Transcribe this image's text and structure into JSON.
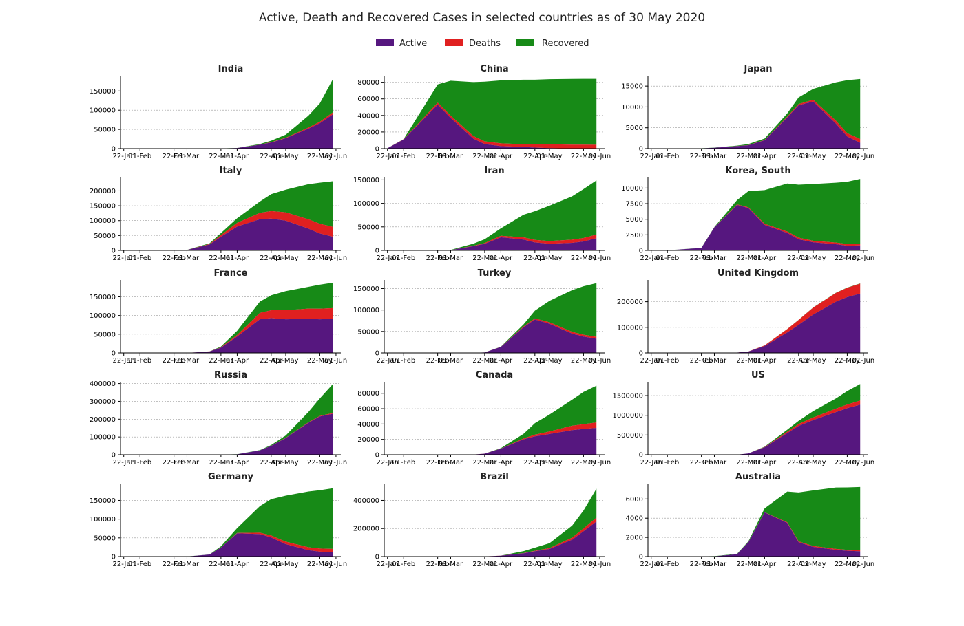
{
  "chart_data": {
    "type": "area",
    "stacked": true,
    "title": "Active, Death and Recovered Cases in selected countries as of 30 May 2020",
    "legend": {
      "placement": "top-center",
      "items": [
        "Active",
        "Deaths",
        "Recovered"
      ]
    },
    "colors": {
      "Active": "#56177f",
      "Deaths": "#e02020",
      "Recovered": "#178a17"
    },
    "x_ticks": [
      "22-Jan",
      "01-Feb",
      "22-Feb",
      "01-Mar",
      "22-Mar",
      "01-Apr",
      "22-Apr",
      "01-May",
      "22-May",
      "01-Jun"
    ],
    "x": [
      "22-Jan",
      "01-Feb",
      "22-Feb",
      "01-Mar",
      "15-Mar",
      "22-Mar",
      "01-Apr",
      "15-Apr",
      "22-Apr",
      "01-May",
      "15-May",
      "22-May",
      "30-May"
    ],
    "grid": "horizontal dotted",
    "panels": [
      {
        "title": "India",
        "ylim": [
          0,
          190000
        ],
        "yticks": [
          "0",
          "50000",
          "100000",
          "150000"
        ],
        "active": [
          0,
          0,
          0,
          0,
          100,
          300,
          1500,
          10000,
          16000,
          27000,
          52000,
          66000,
          89000
        ],
        "deaths": [
          0,
          0,
          0,
          0,
          0,
          10,
          50,
          400,
          700,
          1200,
          2800,
          3600,
          5200
        ],
        "recovered": [
          0,
          0,
          0,
          0,
          10,
          30,
          150,
          1500,
          4000,
          8000,
          31000,
          48000,
          86000
        ]
      },
      {
        "title": "China",
        "ylim": [
          0,
          88000
        ],
        "yticks": [
          "0",
          "20000",
          "40000",
          "60000",
          "80000"
        ],
        "active": [
          500,
          11000,
          53000,
          37000,
          12000,
          5500,
          3000,
          2000,
          1200,
          600,
          150,
          100,
          80
        ],
        "deaths": [
          17,
          260,
          2400,
          2900,
          3200,
          3260,
          3310,
          3340,
          4640,
          4640,
          4640,
          4640,
          4640
        ],
        "recovered": [
          28,
          300,
          22000,
          42000,
          65000,
          72000,
          76000,
          77800,
          77300,
          78500,
          79300,
          79400,
          79400
        ]
      },
      {
        "title": "Japan",
        "ylim": [
          0,
          17500
        ],
        "yticks": [
          "0",
          "5000",
          "10000",
          "15000"
        ],
        "active": [
          2,
          15,
          70,
          200,
          600,
          800,
          2000,
          7500,
          10400,
          11300,
          6000,
          2900,
          1400
        ],
        "deaths": [
          0,
          0,
          1,
          6,
          22,
          40,
          60,
          150,
          280,
          430,
          700,
          800,
          890
        ],
        "recovered": [
          0,
          4,
          20,
          40,
          100,
          250,
          350,
          800,
          1600,
          2600,
          9200,
          12700,
          14400
        ]
      },
      {
        "title": "Italy",
        "ylim": [
          0,
          245000
        ],
        "yticks": [
          "0",
          "50000",
          "100000",
          "150000",
          "200000"
        ],
        "active": [
          0,
          2,
          60,
          1500,
          20000,
          46000,
          80000,
          105000,
          107000,
          100000,
          73000,
          57000,
          46000
        ],
        "deaths": [
          0,
          0,
          2,
          35,
          1800,
          5500,
          12400,
          21000,
          25000,
          28000,
          31500,
          32500,
          33300
        ],
        "recovered": [
          0,
          0,
          1,
          80,
          2300,
          7000,
          15700,
          38000,
          57000,
          76000,
          118000,
          138000,
          153000
        ]
      },
      {
        "title": "Iran",
        "ylim": [
          0,
          155000
        ],
        "yticks": [
          "0",
          "50000",
          "100000",
          "150000"
        ],
        "active": [
          0,
          0,
          20,
          700,
          9000,
          14000,
          28000,
          23000,
          17000,
          14000,
          16000,
          19000,
          26000
        ],
        "deaths": [
          0,
          0,
          5,
          60,
          700,
          1700,
          3000,
          4800,
          5300,
          6000,
          6900,
          7300,
          7700
        ],
        "recovered": [
          0,
          0,
          0,
          250,
          4600,
          8000,
          16000,
          48000,
          61000,
          75000,
          92000,
          104000,
          115000
        ]
      },
      {
        "title": "Korea, South",
        "ylim": [
          0,
          11700
        ],
        "yticks": [
          "0",
          "2500",
          "5000",
          "7500",
          "10000"
        ],
        "active": [
          1,
          12,
          400,
          3700,
          7300,
          6800,
          4100,
          2800,
          1800,
          1300,
          1000,
          750,
          800
        ],
        "deaths": [
          0,
          0,
          2,
          17,
          75,
          110,
          165,
          230,
          240,
          250,
          260,
          265,
          270
        ],
        "recovered": [
          0,
          0,
          20,
          30,
          700,
          2600,
          5400,
          7700,
          8500,
          9100,
          9600,
          10000,
          10400
        ]
      },
      {
        "title": "France",
        "ylim": [
          0,
          195000
        ],
        "yticks": [
          "0",
          "50000",
          "100000",
          "150000"
        ],
        "active": [
          0,
          5,
          14,
          80,
          4000,
          14000,
          44000,
          90000,
          93000,
          90000,
          91000,
          90000,
          91000
        ],
        "deaths": [
          0,
          0,
          1,
          2,
          90,
          860,
          4000,
          17000,
          21000,
          24000,
          27500,
          28300,
          28700
        ],
        "recovered": [
          0,
          0,
          7,
          10,
          70,
          2200,
          11000,
          30000,
          40000,
          51000,
          58000,
          64000,
          68000
        ]
      },
      {
        "title": "Turkey",
        "ylim": [
          0,
          170000
        ],
        "yticks": [
          "0",
          "50000",
          "100000",
          "150000"
        ],
        "active": [
          0,
          0,
          0,
          0,
          5,
          1200,
          14000,
          60000,
          78000,
          68000,
          45000,
          38000,
          33000
        ],
        "deaths": [
          0,
          0,
          0,
          0,
          0,
          30,
          280,
          1600,
          2400,
          3300,
          4100,
          4300,
          4500
        ],
        "recovered": [
          0,
          0,
          0,
          0,
          0,
          30,
          300,
          5000,
          18000,
          50000,
          97000,
          113000,
          125000
        ]
      },
      {
        "title": "United Kingdom",
        "ylim": [
          0,
          285000
        ],
        "yticks": [
          "0",
          "100000",
          "200000"
        ],
        "active": [
          0,
          0,
          9,
          35,
          1200,
          5300,
          27000,
          80000,
          110000,
          150000,
          200000,
          218000,
          232000
        ],
        "deaths": [
          0,
          0,
          0,
          0,
          21,
          280,
          2400,
          13000,
          18700,
          27000,
          33900,
          36500,
          38400
        ],
        "recovered": [
          0,
          0,
          0,
          8,
          18,
          135,
          140,
          350,
          550,
          700,
          950,
          1000,
          1100
        ]
      },
      {
        "title": "Russia",
        "ylim": [
          0,
          410000
        ],
        "yticks": [
          "0",
          "100000",
          "200000",
          "300000",
          "400000"
        ],
        "active": [
          0,
          0,
          2,
          2,
          60,
          350,
          2600,
          24000,
          50000,
          94000,
          180000,
          215000,
          230000
        ],
        "deaths": [
          0,
          0,
          0,
          0,
          0,
          1,
          17,
          200,
          450,
          1070,
          2420,
          3250,
          4550
        ],
        "recovered": [
          0,
          0,
          0,
          2,
          5,
          20,
          190,
          1700,
          4000,
          13000,
          58000,
          98000,
          162000
        ]
      },
      {
        "title": "Canada",
        "ylim": [
          0,
          95000
        ],
        "yticks": [
          "0",
          "20000",
          "40000",
          "60000",
          "80000"
        ],
        "active": [
          0,
          4,
          8,
          20,
          250,
          1400,
          8000,
          20000,
          24000,
          27000,
          32000,
          33500,
          35000
        ],
        "deaths": [
          0,
          0,
          0,
          0,
          1,
          20,
          100,
          1200,
          2100,
          3300,
          5700,
          6300,
          7000
        ],
        "recovered": [
          0,
          0,
          3,
          8,
          11,
          50,
          500,
          6000,
          15000,
          22000,
          34000,
          42000,
          48000
        ]
      },
      {
        "title": "US",
        "ylim": [
          0,
          1850000
        ],
        "yticks": [
          "0",
          "500000",
          "1000000",
          "1500000"
        ],
        "active": [
          1,
          8,
          20,
          60,
          3000,
          32000,
          190000,
          550000,
          730000,
          880000,
          1080000,
          1180000,
          1270000
        ],
        "deaths": [
          0,
          0,
          0,
          1,
          60,
          470,
          6000,
          32000,
          49000,
          65000,
          87000,
          95000,
          104000
        ],
        "recovered": [
          0,
          0,
          5,
          7,
          70,
          170,
          9000,
          52000,
          80000,
          160000,
          260000,
          340000,
          420000
        ]
      },
      {
        "title": "Germany",
        "ylim": [
          0,
          195000
        ],
        "yticks": [
          "0",
          "50000",
          "100000",
          "150000"
        ],
        "active": [
          0,
          8,
          2,
          100,
          5600,
          24000,
          62000,
          60000,
          51000,
          33000,
          17000,
          13000,
          12000
        ],
        "deaths": [
          0,
          0,
          0,
          0,
          13,
          94,
          1100,
          3800,
          5300,
          6800,
          7900,
          8300,
          8500
        ],
        "recovered": [
          0,
          0,
          14,
          16,
          46,
          3200,
          13000,
          71000,
          97000,
          123000,
          149000,
          156000,
          162000
        ]
      },
      {
        "title": "Brazil",
        "ylim": [
          0,
          520000
        ],
        "yticks": [
          "0",
          "200000",
          "400000"
        ],
        "active": [
          0,
          0,
          0,
          2,
          200,
          1500,
          6400,
          23000,
          38000,
          54000,
          120000,
          180000,
          250000
        ],
        "deaths": [
          0,
          0,
          0,
          0,
          0,
          25,
          240,
          1700,
          2900,
          6000,
          14800,
          20000,
          27900
        ],
        "recovered": [
          0,
          0,
          0,
          0,
          0,
          2,
          120,
          14000,
          22000,
          35000,
          86000,
          128000,
          206000
        ]
      },
      {
        "title": "Australia",
        "ylim": [
          0,
          7600
        ],
        "yticks": [
          "0",
          "2000",
          "4000",
          "6000"
        ],
        "active": [
          0,
          9,
          15,
          25,
          240,
          1500,
          4600,
          3500,
          1500,
          1000,
          700,
          600,
          550
        ],
        "deaths": [
          0,
          0,
          0,
          1,
          3,
          7,
          18,
          63,
          74,
          93,
          98,
          102,
          103
        ],
        "recovered": [
          0,
          2,
          10,
          20,
          40,
          80,
          400,
          3200,
          5100,
          5800,
          6400,
          6500,
          6600
        ]
      }
    ]
  }
}
